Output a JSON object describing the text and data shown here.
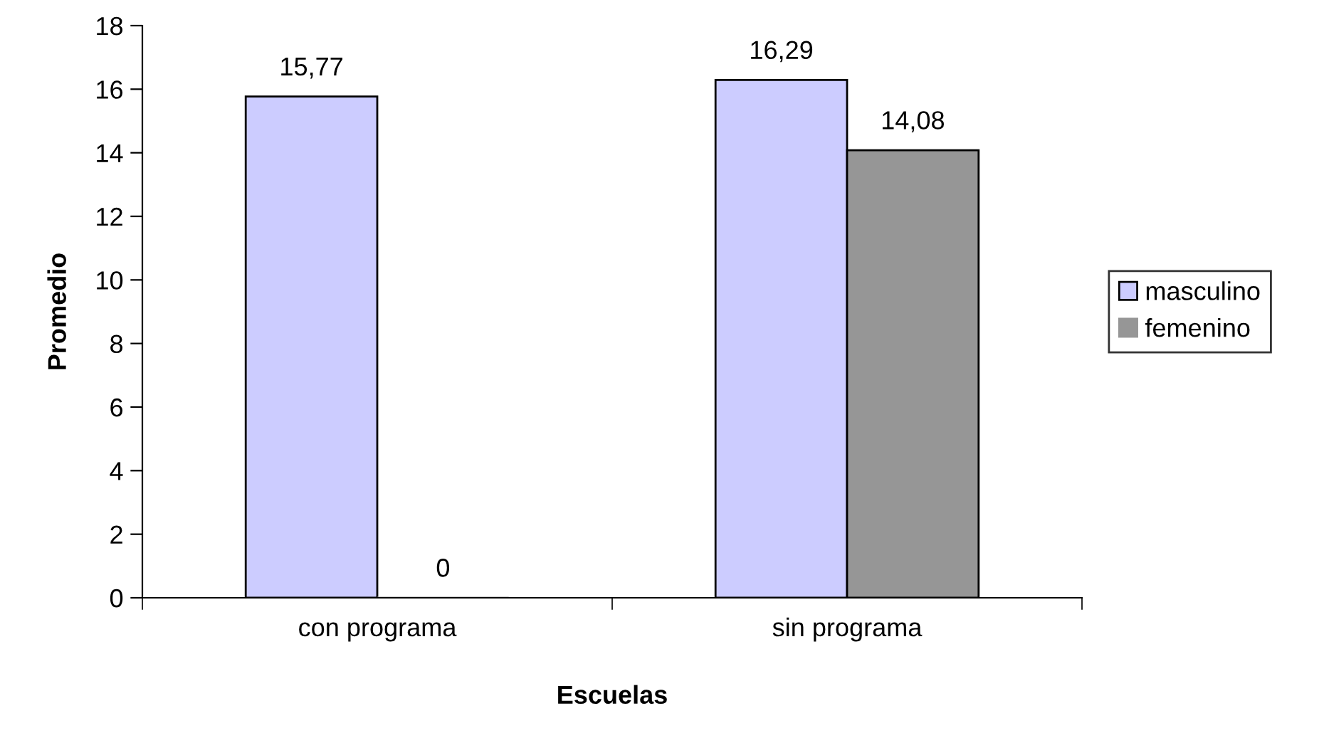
{
  "chart_data": {
    "type": "bar",
    "xlabel": "Escuelas",
    "ylabel": "Promedio",
    "categories": [
      "con programa",
      "sin programa"
    ],
    "series": [
      {
        "name": "masculino",
        "color": "#ccccff",
        "values": [
          15.77,
          16.29
        ],
        "value_labels": [
          "15,77",
          "16,29"
        ]
      },
      {
        "name": "femenino",
        "color": "#969696",
        "values": [
          0,
          14.08
        ],
        "value_labels": [
          "0",
          "14,08"
        ]
      }
    ],
    "ylim": [
      0,
      18
    ],
    "yticks": [
      0,
      2,
      4,
      6,
      8,
      10,
      12,
      14,
      16,
      18
    ],
    "grid": false,
    "legend": "right"
  }
}
